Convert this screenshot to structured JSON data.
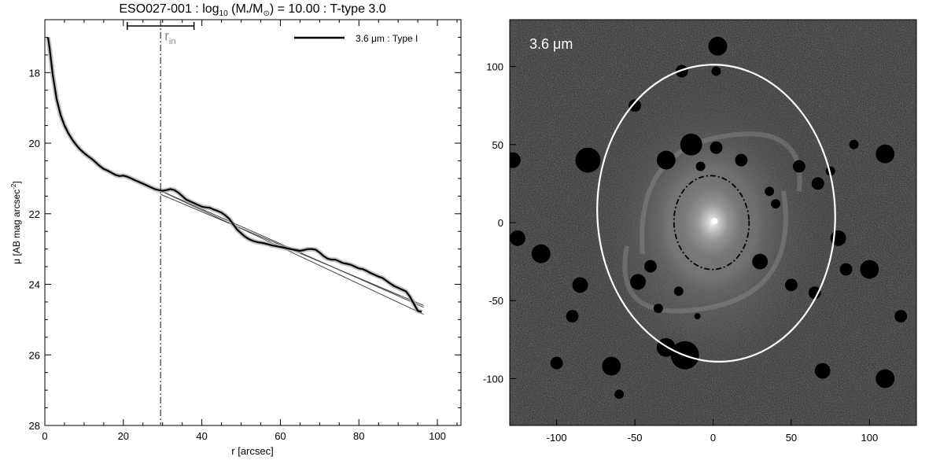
{
  "chart_data": [
    {
      "type": "line",
      "title": "ESO027-001 : log",
      "title_sub": "10",
      "title_mid": " (M",
      "title_mid_sub": "*",
      "title_mid2": "/M",
      "title_sun": "⊙",
      "title_end": ") = 10.00 : T-type 3.0",
      "xlabel": "r [arcsec]",
      "ylabel": "μ [AB mag arcsec",
      "ylabel_sup": "-2",
      "ylabel_end": "]",
      "xlim": [
        0,
        106
      ],
      "ylim": [
        28,
        16.5
      ],
      "y_inverted": true,
      "xticks": [
        0,
        20,
        40,
        60,
        80,
        100
      ],
      "yticks": [
        18,
        20,
        22,
        24,
        26,
        28
      ],
      "legend": {
        "position": "top-right",
        "label": "3.6 μm : Type I",
        "color": "#000000"
      },
      "r_in": {
        "label": "r",
        "sub": "in",
        "value": 29.5,
        "range": [
          21,
          38
        ]
      },
      "series": [
        {
          "name": "3.6 μm : Type I",
          "color": "#000000",
          "x": [
            0.8,
            1.2,
            2,
            3,
            4,
            5,
            6,
            7,
            8,
            9,
            10,
            11,
            12,
            13,
            14,
            15,
            16,
            17,
            18,
            19,
            20,
            21,
            22,
            23,
            24,
            25,
            26,
            27,
            28,
            29,
            30,
            31,
            32,
            33,
            34,
            35,
            36,
            37,
            38,
            39,
            40,
            41,
            42,
            43,
            44,
            45,
            46,
            47,
            48,
            49,
            50,
            51,
            52,
            53,
            54,
            55,
            56,
            57,
            58,
            59,
            60,
            61,
            62,
            63,
            64,
            65,
            66,
            67,
            68,
            69,
            70,
            71,
            72,
            73,
            74,
            75,
            76,
            77,
            78,
            79,
            80,
            81,
            82,
            83,
            84,
            85,
            86,
            87,
            88,
            89,
            90,
            91,
            92,
            93,
            94,
            95,
            96
          ],
          "y": [
            17.0,
            17.3,
            18.05,
            18.75,
            19.2,
            19.5,
            19.72,
            19.9,
            20.05,
            20.18,
            20.28,
            20.37,
            20.45,
            20.55,
            20.65,
            20.73,
            20.78,
            20.84,
            20.9,
            20.93,
            20.92,
            20.95,
            21.0,
            21.05,
            21.1,
            21.15,
            21.2,
            21.25,
            21.3,
            21.33,
            21.35,
            21.33,
            21.3,
            21.33,
            21.4,
            21.5,
            21.6,
            21.65,
            21.7,
            21.75,
            21.8,
            21.82,
            21.83,
            21.88,
            21.92,
            21.97,
            22.05,
            22.15,
            22.3,
            22.45,
            22.55,
            22.65,
            22.72,
            22.77,
            22.8,
            22.82,
            22.84,
            22.87,
            22.9,
            22.92,
            22.94,
            22.96,
            22.99,
            23.01,
            23.03,
            23.05,
            23.03,
            23.0,
            23.0,
            23.02,
            23.1,
            23.2,
            23.27,
            23.3,
            23.3,
            23.35,
            23.4,
            23.42,
            23.45,
            23.5,
            23.55,
            23.57,
            23.62,
            23.68,
            23.73,
            23.78,
            23.82,
            23.9,
            23.98,
            24.05,
            24.1,
            24.15,
            24.2,
            24.35,
            24.55,
            24.75,
            24.78
          ]
        }
      ],
      "fit_lines": [
        {
          "x": [
            29.5,
            96.5
          ],
          "y": [
            21.35,
            24.65
          ]
        },
        {
          "x": [
            29.5,
            96.5
          ],
          "y": [
            21.35,
            24.85
          ]
        },
        {
          "x": [
            29.5,
            96.5
          ],
          "y": [
            21.45,
            24.6
          ]
        }
      ]
    },
    {
      "type": "image",
      "label": "3.6 μm",
      "xlim": [
        -130,
        130
      ],
      "ylim": [
        -130,
        130
      ],
      "xticks": [
        -100,
        -50,
        0,
        50,
        100
      ],
      "yticks": [
        100,
        50,
        0,
        -50,
        -100
      ],
      "outer_ellipse": {
        "cx": 2,
        "cy": 6,
        "rx": 76,
        "ry": 95,
        "angle_deg": -3,
        "color": "#ffffff"
      },
      "inner_ellipse": {
        "cx": -1,
        "cy": 0,
        "rx": 24,
        "ry": 30,
        "angle_deg": -3,
        "color": "#000000"
      }
    }
  ]
}
